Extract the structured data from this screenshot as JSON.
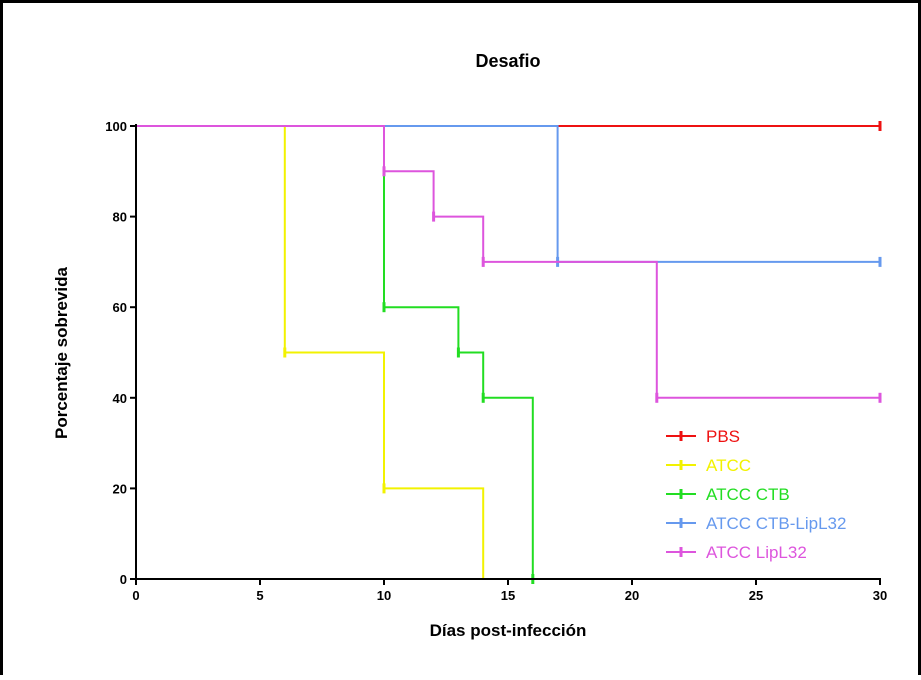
{
  "chart_data": {
    "type": "line",
    "step": true,
    "title": "Desafio",
    "xlabel": "Días post-infección",
    "ylabel": "Porcentaje sobrevida",
    "xlim": [
      0,
      30
    ],
    "ylim": [
      0,
      100
    ],
    "xticks": [
      0,
      5,
      10,
      15,
      20,
      25,
      30
    ],
    "yticks": [
      0,
      20,
      40,
      60,
      80,
      100
    ],
    "legend_position": "bottom-right",
    "series": [
      {
        "name": "PBS",
        "color": "#ee1111",
        "points": [
          [
            0,
            100
          ],
          [
            30,
            100
          ]
        ],
        "censored": [
          [
            30,
            100
          ]
        ]
      },
      {
        "name": "ATCC",
        "color": "#f2f200",
        "points": [
          [
            0,
            100
          ],
          [
            6,
            100
          ],
          [
            6,
            50
          ],
          [
            10,
            50
          ],
          [
            10,
            20
          ],
          [
            14,
            20
          ],
          [
            14,
            0
          ]
        ],
        "censored": [
          [
            6,
            50
          ],
          [
            10,
            20
          ]
        ]
      },
      {
        "name": "ATCC CTB",
        "color": "#22dd22",
        "points": [
          [
            0,
            100
          ],
          [
            10,
            100
          ],
          [
            10,
            60
          ],
          [
            13,
            60
          ],
          [
            13,
            50
          ],
          [
            14,
            50
          ],
          [
            14,
            40
          ],
          [
            16,
            40
          ],
          [
            16,
            0
          ]
        ],
        "censored": [
          [
            10,
            60
          ],
          [
            13,
            50
          ],
          [
            14,
            40
          ],
          [
            16,
            0
          ]
        ]
      },
      {
        "name": "ATCC CTB-LipL32",
        "color": "#6699ee",
        "points": [
          [
            0,
            100
          ],
          [
            17,
            100
          ],
          [
            17,
            70
          ],
          [
            30,
            70
          ]
        ],
        "censored": [
          [
            17,
            70
          ],
          [
            30,
            70
          ]
        ]
      },
      {
        "name": "ATCC LipL32",
        "color": "#dd55dd",
        "points": [
          [
            0,
            100
          ],
          [
            10,
            100
          ],
          [
            10,
            90
          ],
          [
            12,
            90
          ],
          [
            12,
            80
          ],
          [
            14,
            80
          ],
          [
            14,
            70
          ],
          [
            21,
            70
          ],
          [
            21,
            40
          ],
          [
            30,
            40
          ]
        ],
        "censored": [
          [
            10,
            90
          ],
          [
            12,
            80
          ],
          [
            14,
            70
          ],
          [
            21,
            40
          ],
          [
            30,
            40
          ]
        ]
      }
    ]
  }
}
